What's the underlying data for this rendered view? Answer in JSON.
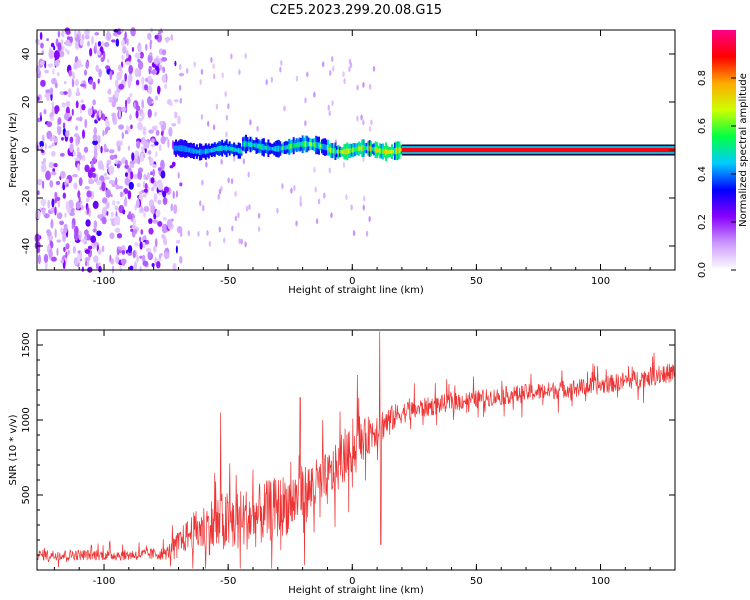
{
  "title": "C2E5.2023.299.20.08.G15",
  "chart_data": [
    {
      "type": "heatmap",
      "xlabel": "Height of straight line (km)",
      "ylabel": "Frequency (Hz)",
      "xlim": [
        -127,
        130
      ],
      "ylim": [
        -50,
        50
      ],
      "xticks": [
        -100,
        -50,
        0,
        50,
        100
      ],
      "yticks": [
        -40,
        -20,
        0,
        20,
        40
      ],
      "colorbar": {
        "label": "Normalized spectral amplitude",
        "range": [
          0.0,
          1.0
        ],
        "ticks": [
          0.0,
          0.2,
          0.4,
          0.6,
          0.8
        ],
        "colors": [
          "#ffffff",
          "#cc99ff",
          "#8800ff",
          "#0000ff",
          "#00ccff",
          "#00ff44",
          "#ccff00",
          "#ffaa00",
          "#ff0000",
          "#ff0088"
        ]
      },
      "features": [
        {
          "x_range": [
            -127,
            -72
          ],
          "freq_range": [
            -50,
            50
          ],
          "description_amplitude": "scattered noise 0.05-0.3"
        },
        {
          "x_range": [
            -72,
            20
          ],
          "freq_center": 0,
          "freq_halfwidth": 3,
          "amplitude": 0.4
        },
        {
          "x_range": [
            20,
            130
          ],
          "freq_center": 0,
          "freq_halfwidth": 1,
          "amplitude": 0.9
        }
      ],
      "grid": false
    },
    {
      "type": "line",
      "xlabel": "Height of straight line (km)",
      "ylabel": "SNR (10 * v/v)",
      "xlim": [
        -127,
        130
      ],
      "ylim": [
        0,
        1600
      ],
      "xticks": [
        -100,
        -50,
        0,
        50,
        100
      ],
      "yticks": [
        500,
        1000,
        1500
      ],
      "color": "#ee3333",
      "envelope": [
        {
          "x": -127,
          "mean": 100,
          "spread": 60
        },
        {
          "x": -90,
          "mean": 100,
          "spread": 60
        },
        {
          "x": -75,
          "mean": 110,
          "spread": 70
        },
        {
          "x": -65,
          "mean": 250,
          "spread": 200
        },
        {
          "x": -55,
          "mean": 300,
          "spread": 350
        },
        {
          "x": -40,
          "mean": 350,
          "spread": 350
        },
        {
          "x": -25,
          "mean": 450,
          "spread": 350
        },
        {
          "x": -10,
          "mean": 600,
          "spread": 300
        },
        {
          "x": 0,
          "mean": 800,
          "spread": 250
        },
        {
          "x": 10,
          "mean": 950,
          "spread": 200
        },
        {
          "x": 20,
          "mean": 1050,
          "spread": 120
        },
        {
          "x": 40,
          "mean": 1120,
          "spread": 100
        },
        {
          "x": 70,
          "mean": 1180,
          "spread": 100
        },
        {
          "x": 100,
          "mean": 1230,
          "spread": 100
        },
        {
          "x": 130,
          "mean": 1320,
          "spread": 110
        }
      ],
      "spikes": [
        {
          "x": 11,
          "y": 1590
        },
        {
          "x": 11.5,
          "y": 170
        },
        {
          "x": 2,
          "y": 1300
        },
        {
          "x": -53,
          "y": 1050
        },
        {
          "x": -21,
          "y": 1150
        }
      ],
      "grid": false
    }
  ]
}
